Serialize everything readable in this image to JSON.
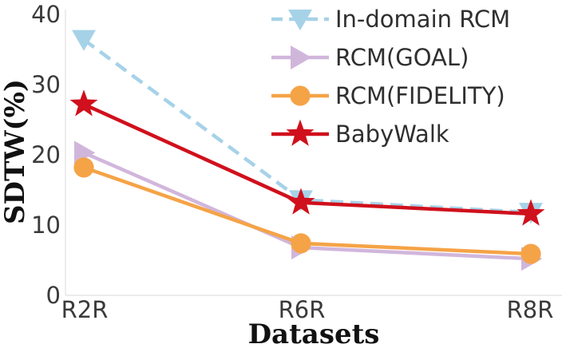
{
  "chart_data": {
    "type": "line",
    "title": "",
    "xlabel": "Datasets",
    "ylabel": "SDTW(%)",
    "categories": [
      "R2R",
      "R6R",
      "R8R"
    ],
    "ylim": [
      0,
      40
    ],
    "yticks": [
      0,
      10,
      20,
      30,
      40
    ],
    "grid": false,
    "legend_position": "top-right",
    "series": [
      {
        "name": "In-domain RCM",
        "values": [
          36.4,
          13.6,
          11.8
        ],
        "color": "#a6d2e8",
        "marker": "triangle-down",
        "dash": true
      },
      {
        "name": "RCM(GOAL)",
        "values": [
          20.3,
          6.8,
          5.2
        ],
        "color": "#d1b6dc",
        "marker": "triangle-right",
        "dash": false
      },
      {
        "name": "RCM(FIDELITY)",
        "values": [
          18.2,
          7.4,
          5.9
        ],
        "color": "#f5a347",
        "marker": "circle",
        "dash": false
      },
      {
        "name": "BabyWalk",
        "values": [
          27.2,
          13.2,
          11.6
        ],
        "color": "#d0101c",
        "marker": "star",
        "dash": false
      }
    ]
  }
}
